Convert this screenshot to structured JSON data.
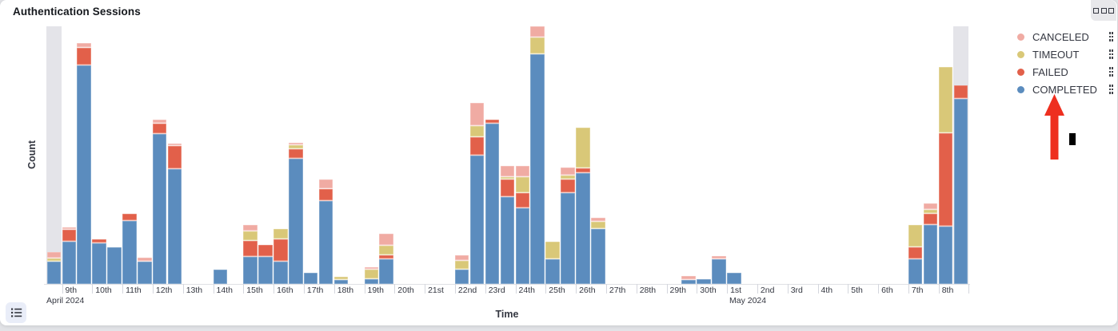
{
  "panel": {
    "title": "Authentication Sessions",
    "options_icon": "boxes-horizontal-icon",
    "legend_toggle_icon": "list-icon",
    "legend_action_icon": "boxes-vertical-icon"
  },
  "axes": {
    "y_label": "Count",
    "x_label": "Time",
    "y_tick_labels_visible": false,
    "x_ticks": [
      {
        "day": 0,
        "label": "9th",
        "sub": "April 2024"
      },
      {
        "day": 1,
        "label": "10th"
      },
      {
        "day": 2,
        "label": "11th"
      },
      {
        "day": 3,
        "label": "12th"
      },
      {
        "day": 4,
        "label": "13th"
      },
      {
        "day": 5,
        "label": "14th"
      },
      {
        "day": 6,
        "label": "15th"
      },
      {
        "day": 7,
        "label": "16th"
      },
      {
        "day": 8,
        "label": "17th"
      },
      {
        "day": 9,
        "label": "18th"
      },
      {
        "day": 10,
        "label": "19th"
      },
      {
        "day": 11,
        "label": "20th"
      },
      {
        "day": 12,
        "label": "21st"
      },
      {
        "day": 13,
        "label": "22nd"
      },
      {
        "day": 14,
        "label": "23rd"
      },
      {
        "day": 15,
        "label": "24th"
      },
      {
        "day": 16,
        "label": "25th"
      },
      {
        "day": 17,
        "label": "26th"
      },
      {
        "day": 18,
        "label": "27th"
      },
      {
        "day": 19,
        "label": "28th"
      },
      {
        "day": 20,
        "label": "29th"
      },
      {
        "day": 21,
        "label": "30th"
      },
      {
        "day": 22,
        "label": "1st",
        "sub": "May 2024"
      },
      {
        "day": 23,
        "label": "2nd"
      },
      {
        "day": 24,
        "label": "3rd"
      },
      {
        "day": 25,
        "label": "4th"
      },
      {
        "day": 26,
        "label": "5th"
      },
      {
        "day": 27,
        "label": "6th"
      },
      {
        "day": 28,
        "label": "7th"
      },
      {
        "day": 29,
        "label": "8th"
      }
    ],
    "sub_labels_x_rel": {
      "April 2024": 3,
      "May 2024": 857
    }
  },
  "legend": {
    "items": [
      {
        "label": "CANCELED",
        "color": "#f0aba3"
      },
      {
        "label": "TIMEOUT",
        "color": "#d9c878"
      },
      {
        "label": "FAILED",
        "color": "#e2604a"
      },
      {
        "label": "COMPLETED",
        "color": "#5b8cbe"
      }
    ]
  },
  "chart_data": {
    "type": "bar",
    "stacked": true,
    "title": "Authentication Sessions",
    "xlabel": "Time",
    "ylabel": "Count",
    "x_range": "2024-04-08 12:00 to 2024-05-08 24:00",
    "bucket_interval": "12h",
    "grid": false,
    "legend_position": "right",
    "value_note": "y-axis shows no tick labels; segment values below are measured bar heights in screen pixels (proportional to counts); plot height = 323px",
    "stack_order_bottom_to_top": [
      "completed",
      "failed",
      "timeout",
      "canceled"
    ],
    "colors": {
      "completed": "#5b8cbe",
      "failed": "#e2604a",
      "timeout": "#d9c878",
      "canceled": "#f0aba3"
    },
    "partial_bucket_indices": [
      0,
      60
    ],
    "partial_bucket_color": "#e4e4e9",
    "buckets": [
      {
        "i": 0,
        "t": "Apr 8 12:00",
        "completed": 28,
        "timeout": 4,
        "canceled": 8
      },
      {
        "i": 1,
        "t": "Apr 9 00:00",
        "completed": 53,
        "failed": 15,
        "canceled": 3
      },
      {
        "i": 2,
        "t": "Apr 9 12:00",
        "completed": 274,
        "failed": 22,
        "canceled": 6
      },
      {
        "i": 3,
        "t": "Apr 10 00:00",
        "completed": 51,
        "failed": 5
      },
      {
        "i": 4,
        "t": "Apr 10 12:00",
        "completed": 46
      },
      {
        "i": 5,
        "t": "Apr 11 00:00",
        "completed": 79,
        "failed": 9
      },
      {
        "i": 6,
        "t": "Apr 11 12:00",
        "completed": 28,
        "canceled": 5
      },
      {
        "i": 7,
        "t": "Apr 12 00:00",
        "completed": 188,
        "failed": 13,
        "canceled": 5
      },
      {
        "i": 8,
        "t": "Apr 12 12:00",
        "completed": 144,
        "failed": 29,
        "canceled": 3
      },
      {
        "i": 11,
        "t": "Apr 14 00:00",
        "completed": 18
      },
      {
        "i": 13,
        "t": "Apr 15 00:00",
        "completed": 34,
        "failed": 20,
        "timeout": 12,
        "canceled": 8
      },
      {
        "i": 14,
        "t": "Apr 15 12:00",
        "completed": 34,
        "failed": 15
      },
      {
        "i": 15,
        "t": "Apr 16 00:00",
        "completed": 28,
        "failed": 28,
        "timeout": 13
      },
      {
        "i": 16,
        "t": "Apr 16 12:00",
        "completed": 157,
        "failed": 12,
        "timeout": 5,
        "canceled": 3
      },
      {
        "i": 17,
        "t": "Apr 17 00:00",
        "completed": 14
      },
      {
        "i": 18,
        "t": "Apr 17 12:00",
        "completed": 104,
        "failed": 15,
        "canceled": 12
      },
      {
        "i": 19,
        "t": "Apr 18 00:00",
        "completed": 5,
        "timeout": 4
      },
      {
        "i": 21,
        "t": "Apr 19 00:00",
        "completed": 6,
        "timeout": 12,
        "canceled": 3
      },
      {
        "i": 22,
        "t": "Apr 19 12:00",
        "completed": 31,
        "failed": 5,
        "timeout": 12,
        "canceled": 15
      },
      {
        "i": 27,
        "t": "Apr 22 00:00",
        "completed": 18,
        "timeout": 11,
        "canceled": 7
      },
      {
        "i": 28,
        "t": "Apr 22 12:00",
        "completed": 161,
        "failed": 23,
        "timeout": 14,
        "canceled": 29
      },
      {
        "i": 29,
        "t": "Apr 23 00:00",
        "completed": 201,
        "failed": 5
      },
      {
        "i": 30,
        "t": "Apr 23 12:00",
        "completed": 109,
        "failed": 22,
        "timeout": 3,
        "canceled": 14
      },
      {
        "i": 31,
        "t": "Apr 24 00:00",
        "completed": 95,
        "failed": 19,
        "timeout": 20,
        "canceled": 14
      },
      {
        "i": 32,
        "t": "Apr 24 12:00",
        "completed": 288,
        "timeout": 21,
        "canceled": 14
      },
      {
        "i": 33,
        "t": "Apr 25 00:00",
        "completed": 31,
        "timeout": 22
      },
      {
        "i": 34,
        "t": "Apr 25 12:00",
        "completed": 114,
        "failed": 17,
        "timeout": 5,
        "canceled": 10
      },
      {
        "i": 35,
        "t": "Apr 26 00:00",
        "completed": 139,
        "failed": 6,
        "timeout": 51
      },
      {
        "i": 36,
        "t": "Apr 26 12:00",
        "completed": 69,
        "timeout": 9,
        "canceled": 5
      },
      {
        "i": 42,
        "t": "Apr 29 12:00",
        "completed": 5,
        "canceled": 5
      },
      {
        "i": 43,
        "t": "Apr 30 00:00",
        "completed": 6
      },
      {
        "i": 44,
        "t": "Apr 30 12:00",
        "completed": 31,
        "canceled": 4
      },
      {
        "i": 45,
        "t": "May 1 00:00",
        "completed": 14
      },
      {
        "i": 57,
        "t": "May 7 00:00",
        "completed": 31,
        "failed": 15,
        "timeout": 28
      },
      {
        "i": 58,
        "t": "May 7 12:00",
        "completed": 74,
        "failed": 14,
        "timeout": 5,
        "canceled": 8
      },
      {
        "i": 59,
        "t": "May 8 00:00",
        "completed": 72,
        "failed": 117,
        "timeout": 83
      },
      {
        "i": 60,
        "t": "May 8 12:00",
        "completed": 232,
        "failed": 17
      }
    ]
  },
  "annotations": {
    "arrow": {
      "shape": "up-arrow",
      "color": "#ee2f1f",
      "points_to": "COMPLETED legend item"
    },
    "cursor_mark": {
      "shape": "vertical-bar",
      "color": "#000000"
    }
  }
}
